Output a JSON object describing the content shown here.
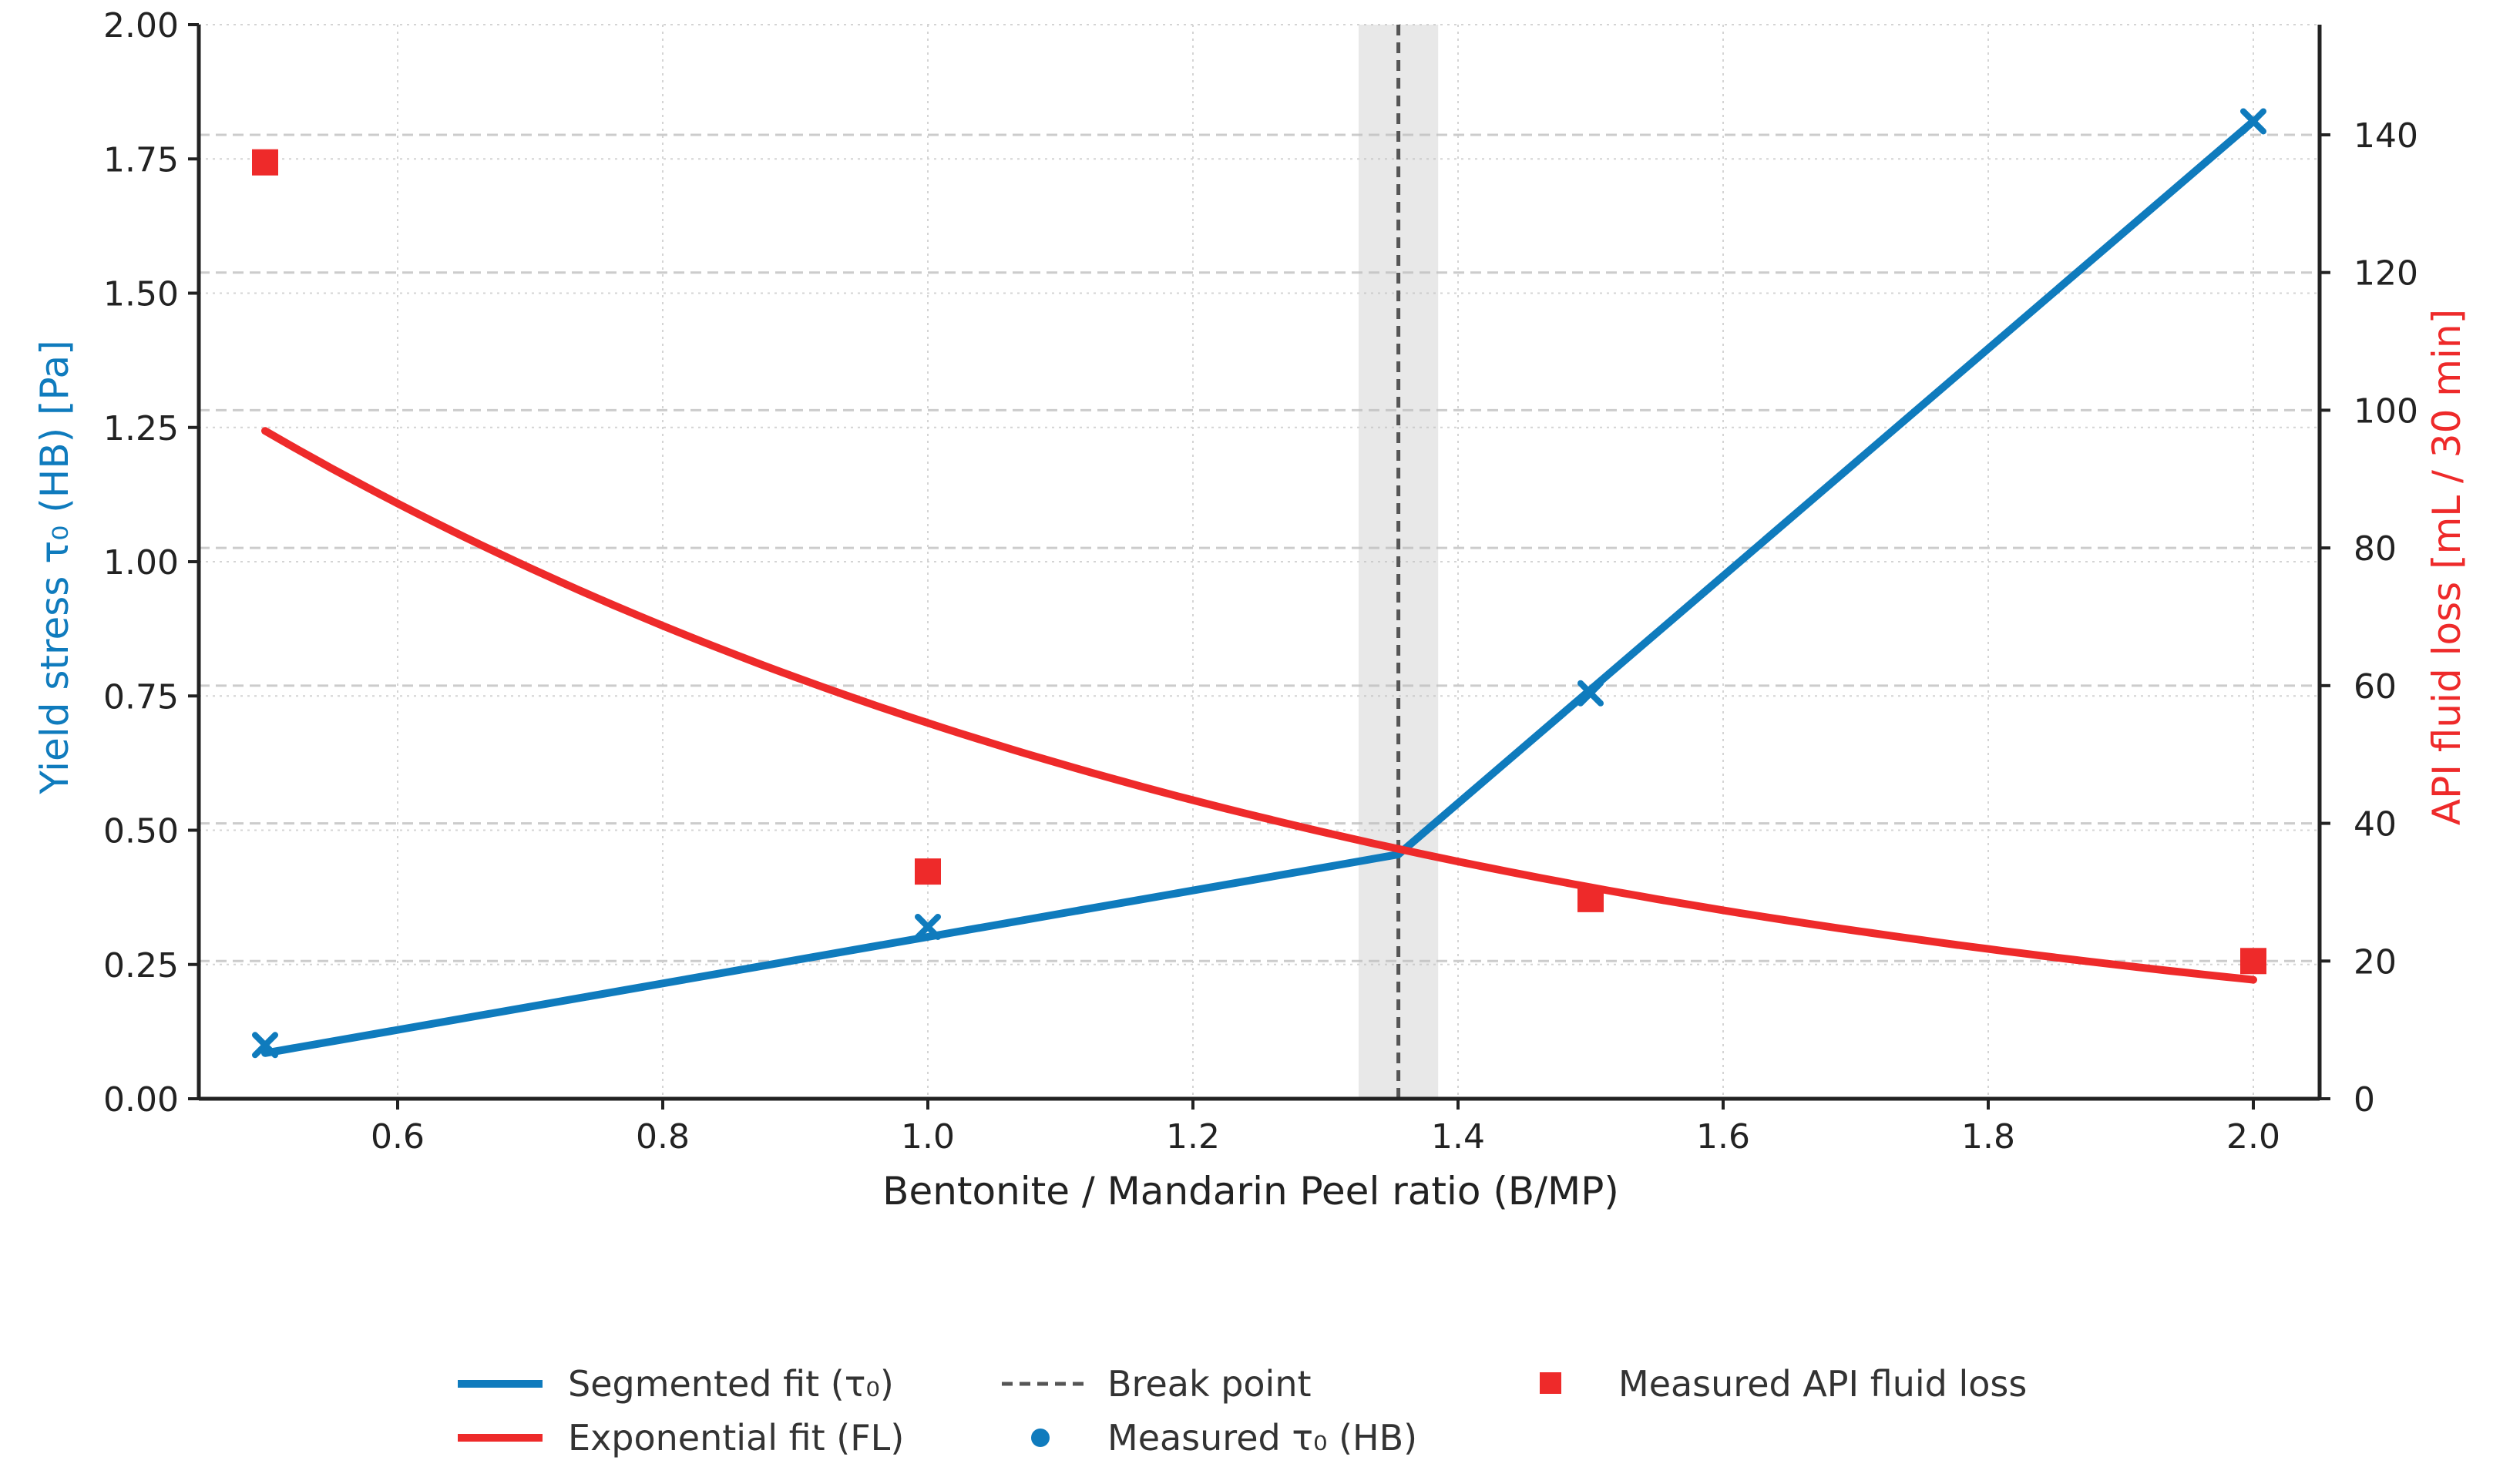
{
  "chart_data": {
    "type": "line",
    "x_axis": {
      "label": "Bentonite / Mandarin Peel ratio (B/MP)",
      "range": [
        0.45,
        2.05
      ],
      "ticks": [
        0.6,
        0.8,
        1.0,
        1.2,
        1.4,
        1.6,
        1.8,
        2.0
      ],
      "tick_labels": [
        "0.6",
        "0.8",
        "1.0",
        "1.2",
        "1.4",
        "1.6",
        "1.8",
        "2.0"
      ]
    },
    "y_left": {
      "label": "Yield stress τ₀ (HB) [Pa]",
      "range": [
        0,
        2.0
      ],
      "ticks": [
        0,
        0.25,
        0.5,
        0.75,
        1.0,
        1.25,
        1.5,
        1.75,
        2.0
      ],
      "tick_labels": [
        "0.00",
        "0.25",
        "0.50",
        "0.75",
        "1.00",
        "1.25",
        "1.50",
        "1.75",
        "2.00"
      ],
      "color": "#0f7bbd"
    },
    "y_right": {
      "label": "API fluid loss [mL / 30 min]",
      "range": [
        0,
        156
      ],
      "ticks": [
        0,
        20,
        40,
        60,
        80,
        100,
        120,
        140
      ],
      "tick_labels": [
        "0",
        "20",
        "40",
        "60",
        "80",
        "100",
        "120",
        "140"
      ],
      "color": "#ee2a2a"
    },
    "break_point": {
      "x": 1.355,
      "band": [
        1.325,
        1.385
      ]
    },
    "series": [
      {
        "name": "Segmented fit (τ₀)",
        "kind": "line",
        "axis": "left",
        "color": "#0f7bbd",
        "x": [
          0.5,
          1.355,
          2.0
        ],
        "y": [
          0.085,
          0.455,
          1.82
        ]
      },
      {
        "name": "Exponential fit (FL)",
        "kind": "curve",
        "axis": "right",
        "color": "#ee2a2a",
        "a": 97,
        "b": -1.15,
        "x0": 0.5,
        "x_range": [
          0.5,
          2.0
        ]
      },
      {
        "name": "Measured τ₀ (HB)",
        "kind": "points",
        "axis": "left",
        "color": "#0f7bbd",
        "x": [
          0.5,
          1.0,
          1.5,
          2.0
        ],
        "y": [
          0.1,
          0.32,
          0.755,
          1.82
        ]
      },
      {
        "name": "Measured API fluid loss",
        "kind": "points",
        "axis": "right",
        "color": "#ee2a2a",
        "x": [
          0.5,
          1.0,
          1.5,
          2.0
        ],
        "y": [
          136,
          33,
          29,
          20
        ]
      }
    ],
    "legend": {
      "position": "bottom-center",
      "entries": [
        "Segmented fit (τ₀)",
        "Exponential fit (FL)",
        "Break point",
        "Measured τ₀ (HB)",
        "Measured API fluid loss"
      ]
    },
    "grid": true
  }
}
